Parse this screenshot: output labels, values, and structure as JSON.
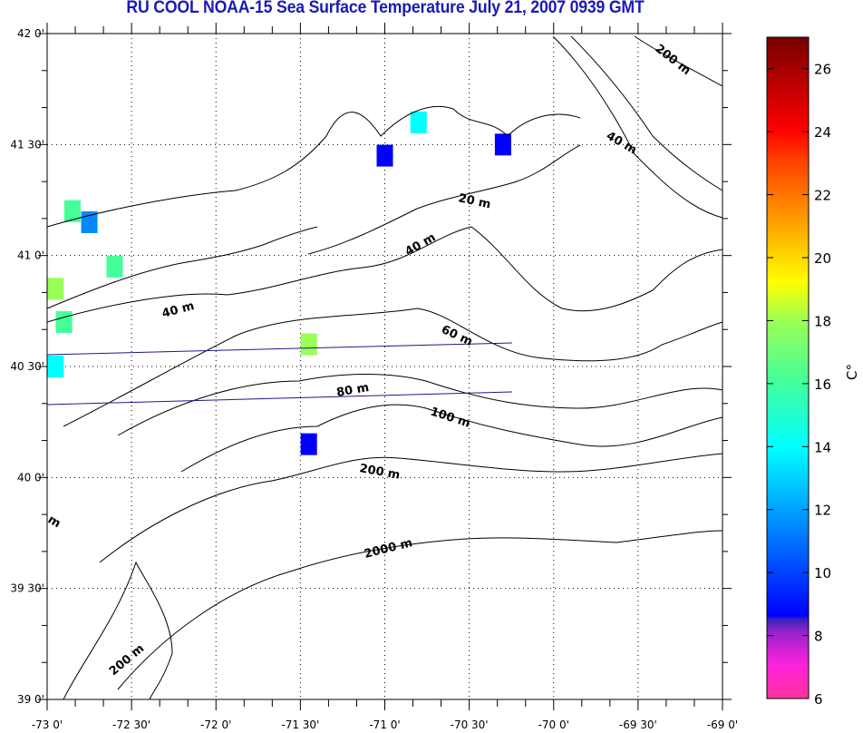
{
  "title": "RU COOL  NOAA-15 Sea Surface Temperature July 21, 2007 0939 GMT",
  "map": {
    "lon_range": [
      -73,
      -69
    ],
    "lat_range": [
      39,
      42
    ],
    "lon_ticks": [
      {
        "value": -73,
        "label": "-73 0'"
      },
      {
        "value": -72.5,
        "label": "-72 30'"
      },
      {
        "value": -72,
        "label": "-72 0'"
      },
      {
        "value": -71.5,
        "label": "-71 30'"
      },
      {
        "value": -71,
        "label": "-71 0'"
      },
      {
        "value": -70.5,
        "label": "-70 30'"
      },
      {
        "value": -70,
        "label": "-70 0'"
      },
      {
        "value": -69.5,
        "label": "-69 30'"
      },
      {
        "value": -69,
        "label": "-69 0'"
      }
    ],
    "lat_ticks": [
      {
        "value": 42,
        "label": "42 0'"
      },
      {
        "value": 41.5,
        "label": "41 30'"
      },
      {
        "value": 41,
        "label": "41 0'"
      },
      {
        "value": 40.5,
        "label": "40 30'"
      },
      {
        "value": 40,
        "label": "40 0'"
      },
      {
        "value": 39.5,
        "label": "39 30'"
      },
      {
        "value": 39,
        "label": "39 0'"
      }
    ],
    "contour_labels": [
      "200 m",
      "40 m",
      "20 m",
      "40 m",
      "40 m",
      "60 m",
      "80 m",
      "100 m",
      "200 m",
      "m",
      "2000 m",
      "200 m"
    ],
    "sst_patches": [
      {
        "lon": -72.85,
        "lat": 41.2,
        "temp": 17
      },
      {
        "lon": -72.75,
        "lat": 41.15,
        "temp": 13
      },
      {
        "lon": -72.95,
        "lat": 40.85,
        "temp": 18
      },
      {
        "lon": -72.9,
        "lat": 40.7,
        "temp": 16
      },
      {
        "lon": -72.95,
        "lat": 40.5,
        "temp": 15
      },
      {
        "lon": -72.6,
        "lat": 40.95,
        "temp": 17
      },
      {
        "lon": -71.0,
        "lat": 41.45,
        "temp": 10
      },
      {
        "lon": -70.8,
        "lat": 41.6,
        "temp": 15
      },
      {
        "lon": -70.3,
        "lat": 41.5,
        "temp": 11
      },
      {
        "lon": -71.45,
        "lat": 40.6,
        "temp": 18
      },
      {
        "lon": -71.45,
        "lat": 40.15,
        "temp": 10
      }
    ]
  },
  "colorbar": {
    "range": [
      6,
      27
    ],
    "ticks": [
      "6",
      "8",
      "10",
      "12",
      "14",
      "16",
      "18",
      "20",
      "22",
      "24",
      "26"
    ],
    "unit_label": "C°"
  }
}
